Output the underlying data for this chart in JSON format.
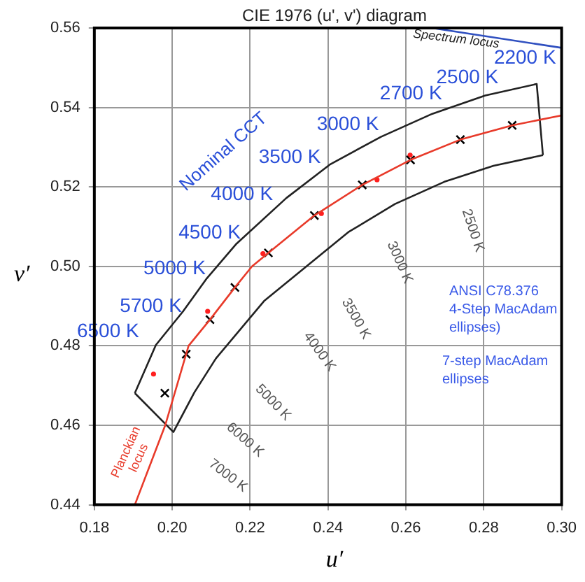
{
  "chart_data": {
    "type": "scatter",
    "title": "CIE 1976 (u', v') diagram",
    "xlabel": "u′",
    "ylabel": "v′",
    "xlim": [
      0.18,
      0.3
    ],
    "ylim": [
      0.44,
      0.56
    ],
    "xticks": [
      {
        "value": 0.18,
        "label": "0.18"
      },
      {
        "value": 0.2,
        "label": "0.20"
      },
      {
        "value": 0.22,
        "label": "0.22"
      },
      {
        "value": 0.24,
        "label": "0.24"
      },
      {
        "value": 0.26,
        "label": "0.26"
      },
      {
        "value": 0.28,
        "label": "0.28"
      },
      {
        "value": 0.3,
        "label": "0.30"
      }
    ],
    "yticks": [
      {
        "value": 0.44,
        "label": "0.44"
      },
      {
        "value": 0.46,
        "label": "0.46"
      },
      {
        "value": 0.48,
        "label": "0.48"
      },
      {
        "value": 0.5,
        "label": "0.50"
      },
      {
        "value": 0.52,
        "label": "0.52"
      },
      {
        "value": 0.54,
        "label": "0.54"
      },
      {
        "value": 0.56,
        "label": "0.56"
      }
    ],
    "grid": true,
    "legend": false,
    "series": [
      {
        "type": "line",
        "color": "#e83a2a",
        "marker": "none",
        "x": [
          0.1904,
          0.1982,
          0.2042,
          0.2097,
          0.2161,
          0.2205,
          0.2247,
          0.2365,
          0.2488,
          0.2612,
          0.274,
          0.2873,
          0.3
        ],
        "values": [
          0.44,
          0.46,
          0.48,
          0.4866,
          0.4947,
          0.5,
          0.5034,
          0.5128,
          0.5205,
          0.5268,
          0.5319,
          0.5355,
          0.538
        ]
      },
      {
        "type": "line",
        "color": "#3050c0",
        "marker": "none",
        "x": [
          0.2667,
          0.3
        ],
        "values": [
          0.56,
          0.555
        ]
      },
      {
        "type": "line",
        "color": "#222222",
        "marker": "none",
        "x": [
          0.1904,
          0.1958,
          0.2028,
          0.2089,
          0.2165,
          0.2293,
          0.2406,
          0.2536,
          0.2668,
          0.2804,
          0.2936,
          0.2952
        ],
        "values": [
          0.4681,
          0.4802,
          0.4887,
          0.497,
          0.5057,
          0.5172,
          0.5257,
          0.5326,
          0.5384,
          0.543,
          0.5459,
          0.528
        ]
      },
      {
        "type": "line",
        "color": "#222222",
        "marker": "none",
        "x": [
          0.1904,
          0.2003,
          0.2057,
          0.2112,
          0.2237,
          0.2452,
          0.2572,
          0.2699,
          0.2825,
          0.2952
        ],
        "values": [
          0.4681,
          0.4583,
          0.4683,
          0.4768,
          0.4914,
          0.5086,
          0.5157,
          0.5213,
          0.5253,
          0.528
        ]
      },
      {
        "color": "#000000",
        "marker": "cross",
        "x": [
          0.2873,
          0.274,
          0.2612,
          0.2488,
          0.2365,
          0.2247,
          0.2161,
          0.2097,
          0.2036,
          0.1981
        ],
        "values": [
          0.5355,
          0.5319,
          0.5268,
          0.5205,
          0.5128,
          0.5034,
          0.4947,
          0.4866,
          0.4779,
          0.4681
        ]
      },
      {
        "color": "#ff2020",
        "marker": "circle",
        "x": [
          0.1952,
          0.2091,
          0.2233,
          0.2383,
          0.2526,
          0.2611
        ],
        "values": [
          0.4729,
          0.4887,
          0.5032,
          0.5133,
          0.5218,
          0.528
        ]
      }
    ],
    "annotations": [
      "2200 K",
      "2500 K",
      "2700 K",
      "3000 K",
      "3500 K",
      "4000 K",
      "4500 K",
      "5000 K",
      "5700 K",
      "6500 K",
      "Nominal CCT",
      "2500 K",
      "3000 K",
      "3500 K",
      "4000 K",
      "5000 K",
      "6000 K",
      "7000 K",
      "Planckian locus",
      "Spectrum locus",
      "ANSI C78.376 4-Step MacAdam ellipses)",
      "7-step MacAdam ellipses"
    ]
  }
}
